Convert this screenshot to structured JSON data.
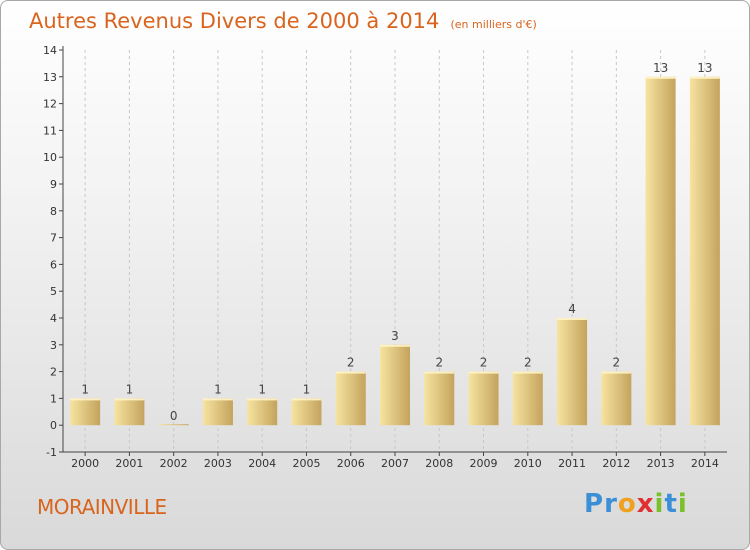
{
  "title": "Autres Revenus Divers de 2000 à 2014",
  "unit_note": "(en milliers d'€)",
  "town": "MORAINVILLE",
  "logo": {
    "text": "Proxiti",
    "letters": [
      {
        "ch": "P",
        "color": "#3a8fd6"
      },
      {
        "ch": "r",
        "color": "#3a8fd6"
      },
      {
        "ch": "o",
        "color": "#f0a020"
      },
      {
        "ch": "x",
        "color": "#e03030"
      },
      {
        "ch": "i",
        "color": "#7bbf2a"
      },
      {
        "ch": "t",
        "color": "#3a8fd6"
      },
      {
        "ch": "i",
        "color": "#7bbf2a"
      }
    ]
  },
  "colors": {
    "title": "#d9641e",
    "bar_light": "#f6e4a0",
    "bar_dark": "#c4a35d",
    "axis": "#444444",
    "grid": "#c8c8c8"
  },
  "chart_data": {
    "type": "bar",
    "title": "Autres Revenus Divers de 2000 à 2014",
    "xlabel": "",
    "ylabel": "",
    "categories": [
      "2000",
      "2001",
      "2002",
      "2003",
      "2004",
      "2005",
      "2006",
      "2007",
      "2008",
      "2009",
      "2010",
      "2011",
      "2012",
      "2013",
      "2014"
    ],
    "values": [
      1,
      1,
      0,
      1,
      1,
      1,
      2,
      3,
      2,
      2,
      2,
      4,
      2,
      13,
      13
    ],
    "data_labels": [
      "1",
      "1",
      "0",
      "1",
      "1",
      "1",
      "2",
      "3",
      "2",
      "2",
      "2",
      "4",
      "2",
      "13",
      "13"
    ],
    "ylim": [
      -1,
      14
    ],
    "yticks": [
      "-1",
      "0",
      "1",
      "2",
      "3",
      "4",
      "5",
      "6",
      "7",
      "8",
      "9",
      "10",
      "11",
      "12",
      "13",
      "14"
    ],
    "grid": "dashed vertical lines at category positions"
  }
}
